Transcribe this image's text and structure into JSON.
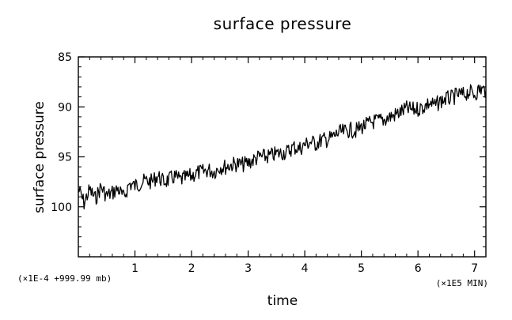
{
  "chart_data": {
    "type": "line",
    "title": "surface pressure",
    "xlabel": "time",
    "ylabel": "surface pressure",
    "x_scale_note": "(×1E5 MIN)",
    "y_scale_note": "(×1E-4 +999.99 mb)",
    "xlim": [
      0.0,
      7.2
    ],
    "ylim": [
      105,
      85
    ],
    "y_inverted": true,
    "x_ticks": [
      1,
      2,
      3,
      4,
      5,
      6,
      7
    ],
    "y_ticks": [
      85,
      90,
      95,
      100
    ],
    "grid": false,
    "legend": "none",
    "line_color": "#000000",
    "series": [
      {
        "points": [
          [
            0.0,
            98.2
          ],
          [
            0.1,
            99.6
          ],
          [
            0.2,
            98.3
          ],
          [
            0.3,
            99.2
          ],
          [
            0.4,
            98.0
          ],
          [
            0.5,
            98.9
          ],
          [
            0.6,
            98.6
          ],
          [
            0.7,
            98.2
          ],
          [
            0.8,
            99.1
          ],
          [
            0.9,
            97.7
          ],
          [
            1.0,
            97.9
          ],
          [
            1.1,
            97.6
          ],
          [
            1.2,
            97.4
          ],
          [
            1.3,
            97.5
          ],
          [
            1.4,
            96.9
          ],
          [
            1.5,
            97.5
          ],
          [
            1.6,
            97.3
          ],
          [
            1.7,
            97.0
          ],
          [
            1.8,
            97.3
          ],
          [
            1.9,
            97.1
          ],
          [
            2.0,
            96.9
          ],
          [
            2.1,
            96.6
          ],
          [
            2.2,
            96.5
          ],
          [
            2.3,
            96.3
          ],
          [
            2.4,
            96.5
          ],
          [
            2.5,
            96.0
          ],
          [
            2.6,
            96.0
          ],
          [
            2.7,
            95.8
          ],
          [
            2.8,
            95.7
          ],
          [
            2.9,
            95.8
          ],
          [
            3.0,
            95.6
          ],
          [
            3.1,
            95.3
          ],
          [
            3.2,
            95.0
          ],
          [
            3.3,
            95.0
          ],
          [
            3.4,
            94.9
          ],
          [
            3.5,
            94.7
          ],
          [
            3.6,
            94.6
          ],
          [
            3.7,
            94.5
          ],
          [
            3.8,
            94.0
          ],
          [
            3.9,
            94.2
          ],
          [
            4.0,
            93.8
          ],
          [
            4.1,
            93.5
          ],
          [
            4.2,
            93.7
          ],
          [
            4.3,
            93.3
          ],
          [
            4.4,
            93.3
          ],
          [
            4.5,
            93.0
          ],
          [
            4.6,
            92.6
          ],
          [
            4.7,
            92.5
          ],
          [
            4.8,
            92.3
          ],
          [
            4.9,
            92.4
          ],
          [
            5.0,
            92.0
          ],
          [
            5.1,
            91.8
          ],
          [
            5.2,
            91.5
          ],
          [
            5.3,
            91.4
          ],
          [
            5.4,
            91.3
          ],
          [
            5.5,
            91.0
          ],
          [
            5.6,
            90.8
          ],
          [
            5.7,
            90.5
          ],
          [
            5.8,
            90.2
          ],
          [
            5.9,
            90.3
          ],
          [
            6.0,
            90.2
          ],
          [
            6.1,
            90.0
          ],
          [
            6.2,
            89.6
          ],
          [
            6.3,
            89.9
          ],
          [
            6.4,
            89.4
          ],
          [
            6.5,
            89.2
          ],
          [
            6.6,
            89.1
          ],
          [
            6.7,
            88.8
          ],
          [
            6.8,
            88.8
          ],
          [
            6.9,
            88.5
          ],
          [
            7.0,
            88.7
          ],
          [
            7.1,
            88.2
          ],
          [
            7.2,
            88.4
          ]
        ]
      }
    ]
  }
}
